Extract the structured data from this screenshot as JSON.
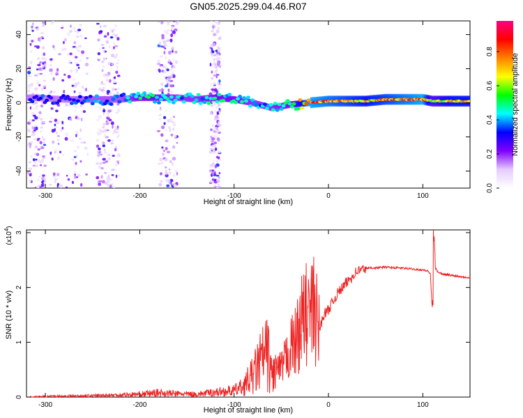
{
  "page_title": "GN05.2025.299.04.46.R07",
  "chart_data": [
    {
      "type": "heatmap",
      "xlabel": "Height of straight line (km)",
      "ylabel": "Frequency (Hz)",
      "xlim": [
        -320,
        150
      ],
      "ylim": [
        -50,
        48
      ],
      "xticks": [
        -300,
        -200,
        -100,
        0,
        100
      ],
      "yticks": [
        -40,
        -20,
        0,
        20,
        40
      ],
      "colorbar": {
        "label": "Normalized spectral amplitude",
        "range": [
          0.0,
          0.98
        ],
        "ticks": [
          0.0,
          0.2,
          0.4,
          0.6,
          0.8
        ],
        "tick_labels": [
          "0.0",
          "0.2",
          "0.4",
          "0.6",
          "0.8"
        ],
        "colormap": [
          "#ffffff",
          "#e6ccff",
          "#8000ff",
          "#0000ff",
          "#00ffff",
          "#00ff00",
          "#ffff00",
          "#ff8000",
          "#ff0000",
          "#ff0080"
        ]
      },
      "ridge": {
        "description_x": [
          -310,
          -280,
          -250,
          -220,
          -200,
          -180,
          -160,
          -140,
          -120,
          -100,
          -80,
          -60,
          -40,
          -20,
          0,
          20,
          40,
          60,
          80,
          100,
          110,
          130,
          150
        ],
        "frequency": [
          3,
          2,
          2,
          2,
          3,
          3,
          3,
          2,
          3,
          2,
          0,
          -3,
          -1,
          0,
          1,
          1,
          1,
          2,
          2,
          2,
          1,
          1,
          1
        ],
        "amplitude": [
          0.35,
          0.35,
          0.4,
          0.4,
          0.5,
          0.5,
          0.45,
          0.45,
          0.5,
          0.5,
          0.45,
          0.45,
          0.5,
          0.9,
          0.85,
          0.8,
          0.75,
          0.8,
          0.85,
          0.9,
          0.6,
          0.75,
          0.75
        ]
      }
    },
    {
      "type": "line",
      "xlabel": "Height of straight line (km)",
      "ylabel": "SNR (10 * v/v)",
      "multiplier_label": "(x10",
      "multiplier_exponent": "4",
      "multiplier_close": ")",
      "xlim": [
        -320,
        150
      ],
      "ylim": [
        0,
        3.05
      ],
      "xticks": [
        -300,
        -200,
        -100,
        0,
        100
      ],
      "yticks": [
        0,
        1,
        2,
        3
      ],
      "color": "#ee2222",
      "series": [
        {
          "name": "SNR",
          "x": [
            -320,
            -300,
            -280,
            -260,
            -240,
            -220,
            -200,
            -180,
            -160,
            -140,
            -120,
            -100,
            -90,
            -80,
            -70,
            -65,
            -60,
            -55,
            -50,
            -45,
            -40,
            -35,
            -30,
            -25,
            -20,
            -15,
            -10,
            -5,
            0,
            10,
            20,
            30,
            40,
            60,
            80,
            100,
            105,
            108,
            110,
            111,
            112,
            115,
            120,
            130,
            140,
            150
          ],
          "y": [
            0.0,
            0.01,
            0.02,
            0.02,
            0.03,
            0.04,
            0.05,
            0.08,
            0.06,
            0.05,
            0.09,
            0.12,
            0.2,
            0.4,
            0.7,
            0.8,
            0.4,
            0.5,
            0.5,
            0.7,
            0.9,
            1.0,
            1.3,
            1.5,
            1.5,
            1.6,
            1.2,
            1.5,
            1.6,
            1.9,
            2.1,
            2.3,
            2.35,
            2.37,
            2.35,
            2.32,
            2.3,
            2.25,
            1.6,
            3.0,
            2.4,
            2.3,
            2.25,
            2.22,
            2.2,
            2.18
          ]
        }
      ],
      "peak_labels": {
        "max_near_x": 112
      }
    }
  ]
}
